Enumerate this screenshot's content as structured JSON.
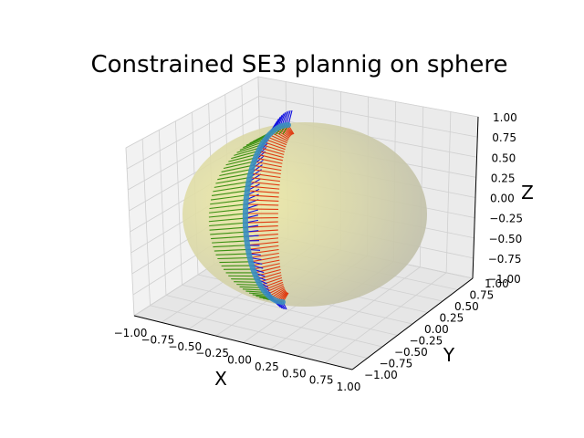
{
  "chart_data": {
    "type": "3d-surface-trajectory",
    "title": "Constrained SE3 plannig on sphere",
    "xlabel": "X",
    "ylabel": "Y",
    "zlabel": "Z",
    "xlim": [
      -1.0,
      1.0
    ],
    "ylim": [
      -1.0,
      1.0
    ],
    "zlim": [
      -1.0,
      1.0
    ],
    "x_ticks": [
      "−1.00",
      "−0.75",
      "−0.50",
      "−0.25",
      "0.00",
      "0.25",
      "0.50",
      "0.75",
      "1.00"
    ],
    "y_ticks": [
      "−1.00",
      "−0.75",
      "−0.50",
      "−0.25",
      "0.00",
      "0.25",
      "0.50",
      "0.75",
      "1.00"
    ],
    "z_ticks": [
      "−1.00",
      "−0.75",
      "−0.50",
      "−0.25",
      "0.00",
      "0.25",
      "0.50",
      "0.75",
      "1.00"
    ],
    "grid": true,
    "surface": {
      "shape": "unit sphere",
      "color": "#e8e6a0",
      "opacity": 0.6
    },
    "trajectory": {
      "color": "#3a8fc0",
      "frames": 60
    },
    "frame_axes": [
      {
        "axis": "x",
        "color": "#e03a10"
      },
      {
        "axis": "y",
        "color": "#3a9010"
      },
      {
        "axis": "z",
        "color": "#1010e0"
      }
    ]
  }
}
